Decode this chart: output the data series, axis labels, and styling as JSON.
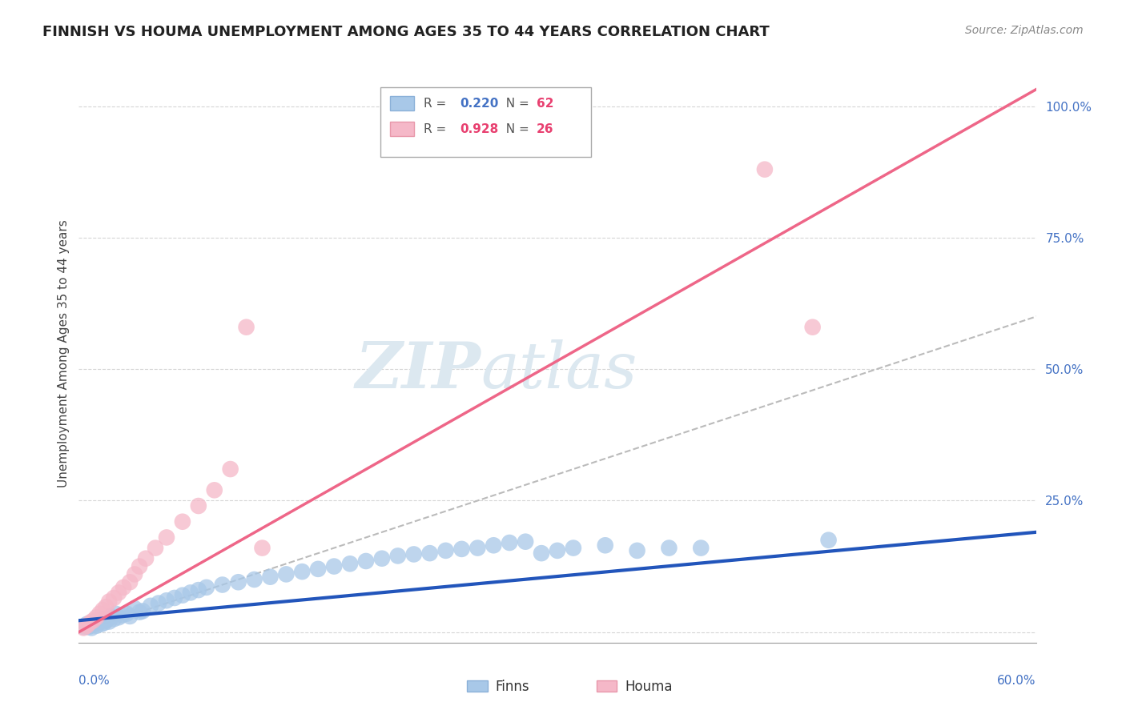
{
  "title": "FINNISH VS HOUMA UNEMPLOYMENT AMONG AGES 35 TO 44 YEARS CORRELATION CHART",
  "source": "Source: ZipAtlas.com",
  "ylabel": "Unemployment Among Ages 35 to 44 years",
  "xlim": [
    0.0,
    0.6
  ],
  "ylim": [
    -0.02,
    1.08
  ],
  "yticks": [
    0.0,
    0.25,
    0.5,
    0.75,
    1.0
  ],
  "ytick_labels": [
    "",
    "25.0%",
    "50.0%",
    "75.0%",
    "100.0%"
  ],
  "legend_finns_R": "0.220",
  "legend_finns_N": "62",
  "legend_houma_R": "0.928",
  "legend_houma_N": "26",
  "finns_color": "#a8c8e8",
  "houma_color": "#f5b8c8",
  "finns_line_color": "#2255bb",
  "houma_line_color": "#ee6688",
  "diagonal_color": "#bbbbbb",
  "background_color": "#ffffff",
  "grid_color": "#cccccc",
  "finns_x": [
    0.003,
    0.005,
    0.006,
    0.007,
    0.008,
    0.009,
    0.01,
    0.011,
    0.012,
    0.013,
    0.014,
    0.015,
    0.016,
    0.017,
    0.018,
    0.019,
    0.02,
    0.022,
    0.023,
    0.025,
    0.027,
    0.03,
    0.032,
    0.035,
    0.038,
    0.04,
    0.045,
    0.05,
    0.055,
    0.06,
    0.065,
    0.07,
    0.075,
    0.08,
    0.09,
    0.1,
    0.11,
    0.12,
    0.13,
    0.14,
    0.15,
    0.16,
    0.17,
    0.18,
    0.19,
    0.2,
    0.21,
    0.22,
    0.23,
    0.24,
    0.25,
    0.26,
    0.27,
    0.28,
    0.29,
    0.3,
    0.31,
    0.33,
    0.35,
    0.37,
    0.39,
    0.47
  ],
  "finns_y": [
    0.01,
    0.015,
    0.01,
    0.012,
    0.008,
    0.015,
    0.02,
    0.012,
    0.018,
    0.02,
    0.015,
    0.025,
    0.018,
    0.022,
    0.025,
    0.02,
    0.03,
    0.025,
    0.035,
    0.028,
    0.032,
    0.035,
    0.03,
    0.045,
    0.038,
    0.04,
    0.05,
    0.055,
    0.06,
    0.065,
    0.07,
    0.075,
    0.08,
    0.085,
    0.09,
    0.095,
    0.1,
    0.105,
    0.11,
    0.115,
    0.12,
    0.125,
    0.13,
    0.135,
    0.14,
    0.145,
    0.148,
    0.15,
    0.155,
    0.158,
    0.16,
    0.165,
    0.17,
    0.172,
    0.15,
    0.155,
    0.16,
    0.165,
    0.155,
    0.16,
    0.16,
    0.175
  ],
  "houma_x": [
    0.003,
    0.005,
    0.007,
    0.009,
    0.011,
    0.013,
    0.015,
    0.017,
    0.019,
    0.022,
    0.025,
    0.028,
    0.032,
    0.035,
    0.038,
    0.042,
    0.048,
    0.055,
    0.065,
    0.075,
    0.085,
    0.095,
    0.105,
    0.115,
    0.43,
    0.46
  ],
  "houma_y": [
    0.008,
    0.012,
    0.018,
    0.022,
    0.028,
    0.035,
    0.042,
    0.048,
    0.058,
    0.065,
    0.075,
    0.085,
    0.095,
    0.11,
    0.125,
    0.14,
    0.16,
    0.18,
    0.21,
    0.24,
    0.27,
    0.31,
    0.58,
    0.16,
    0.88,
    0.58
  ],
  "finns_slope": 0.28,
  "finns_intercept": 0.022,
  "houma_slope": 1.72,
  "houma_intercept": 0.0,
  "watermark_line1": "ZIP",
  "watermark_line2": "atlas",
  "watermark_color": "#dce8f0",
  "title_fontsize": 13,
  "source_fontsize": 10,
  "axis_label_fontsize": 11,
  "tick_fontsize": 11,
  "legend_r_color": "#888888",
  "legend_n_color_finns": "#4472c4",
  "legend_n_color_houma": "#e84070"
}
